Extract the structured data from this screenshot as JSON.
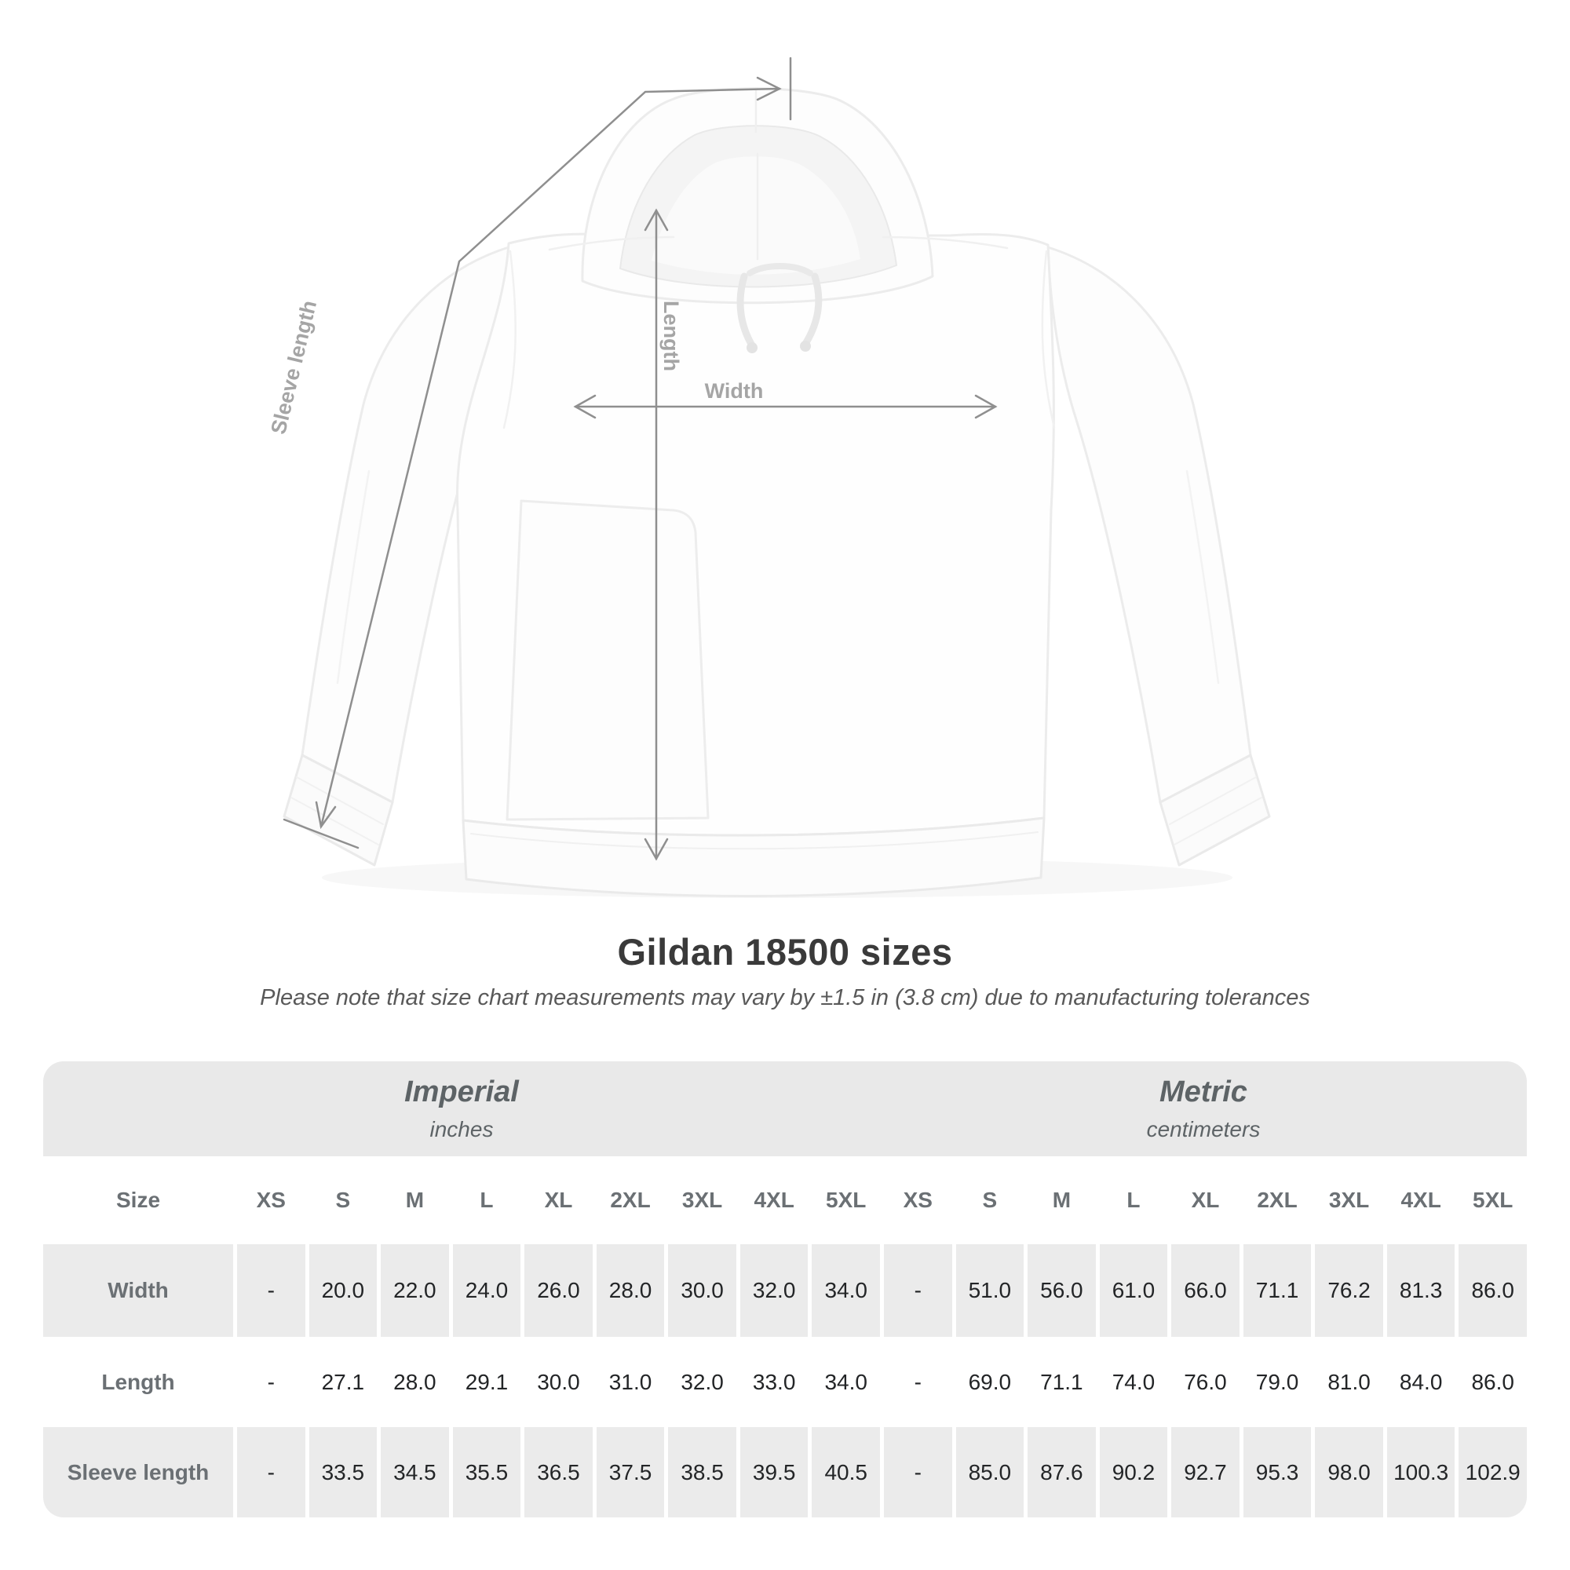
{
  "diagram": {
    "labels": {
      "length": "Length",
      "width": "Width",
      "sleeve_length": "Sleeve length"
    }
  },
  "heading": {
    "title": "Gildan 18500 sizes",
    "note": "Please note that size chart measurements may vary by ±1.5 in (3.8 cm) due to manufacturing tolerances"
  },
  "table": {
    "group_headers": [
      {
        "title": "Imperial",
        "subtitle": "inches"
      },
      {
        "title": "Metric",
        "subtitle": "centimeters"
      }
    ],
    "corner_label": "Size",
    "size_columns": [
      "XS",
      "S",
      "M",
      "L",
      "XL",
      "2XL",
      "3XL",
      "4XL",
      "5XL"
    ],
    "rows": [
      {
        "label": "Width",
        "imperial": [
          "-",
          "20.0",
          "22.0",
          "24.0",
          "26.0",
          "28.0",
          "30.0",
          "32.0",
          "34.0"
        ],
        "metric": [
          "-",
          "51.0",
          "56.0",
          "61.0",
          "66.0",
          "71.1",
          "76.2",
          "81.3",
          "86.0"
        ]
      },
      {
        "label": "Length",
        "imperial": [
          "-",
          "27.1",
          "28.0",
          "29.1",
          "30.0",
          "31.0",
          "32.0",
          "33.0",
          "34.0"
        ],
        "metric": [
          "-",
          "69.0",
          "71.1",
          "74.0",
          "76.0",
          "79.0",
          "81.0",
          "84.0",
          "86.0"
        ]
      },
      {
        "label": "Sleeve length",
        "imperial": [
          "-",
          "33.5",
          "34.5",
          "35.5",
          "36.5",
          "37.5",
          "38.5",
          "39.5",
          "40.5"
        ],
        "metric": [
          "-",
          "85.0",
          "87.6",
          "90.2",
          "92.7",
          "95.3",
          "98.0",
          "100.3",
          "102.9"
        ]
      }
    ]
  },
  "colors": {
    "band_gray": "#e9e9e9",
    "stripe_gray": "#ebebeb",
    "header_text": "#6b7074",
    "cell_text": "#232527",
    "title_text": "#3a3a3a",
    "note_text": "#595959",
    "measure_line": "#8f8f8f",
    "diagram_label": "#a5a5a5",
    "hoodie_outline": "#ececec"
  },
  "chart_data": {
    "type": "table",
    "title": "Gildan 18500 sizes",
    "note": "Please note that size chart measurements may vary by ±1.5 in (3.8 cm) due to manufacturing tolerances",
    "column_groups": [
      {
        "label": "Imperial",
        "unit": "inches",
        "columns": [
          "XS",
          "S",
          "M",
          "L",
          "XL",
          "2XL",
          "3XL",
          "4XL",
          "5XL"
        ]
      },
      {
        "label": "Metric",
        "unit": "centimeters",
        "columns": [
          "XS",
          "S",
          "M",
          "L",
          "XL",
          "2XL",
          "3XL",
          "4XL",
          "5XL"
        ]
      }
    ],
    "rows": [
      {
        "label": "Width",
        "imperial": [
          null,
          20.0,
          22.0,
          24.0,
          26.0,
          28.0,
          30.0,
          32.0,
          34.0
        ],
        "metric": [
          null,
          51.0,
          56.0,
          61.0,
          66.0,
          71.1,
          76.2,
          81.3,
          86.0
        ]
      },
      {
        "label": "Length",
        "imperial": [
          null,
          27.1,
          28.0,
          29.1,
          30.0,
          31.0,
          32.0,
          33.0,
          34.0
        ],
        "metric": [
          null,
          69.0,
          71.1,
          74.0,
          76.0,
          79.0,
          81.0,
          84.0,
          86.0
        ]
      },
      {
        "label": "Sleeve length",
        "imperial": [
          null,
          33.5,
          34.5,
          35.5,
          36.5,
          37.5,
          38.5,
          39.5,
          40.5
        ],
        "metric": [
          null,
          85.0,
          87.6,
          90.2,
          92.7,
          95.3,
          98.0,
          100.3,
          102.9
        ]
      }
    ]
  }
}
